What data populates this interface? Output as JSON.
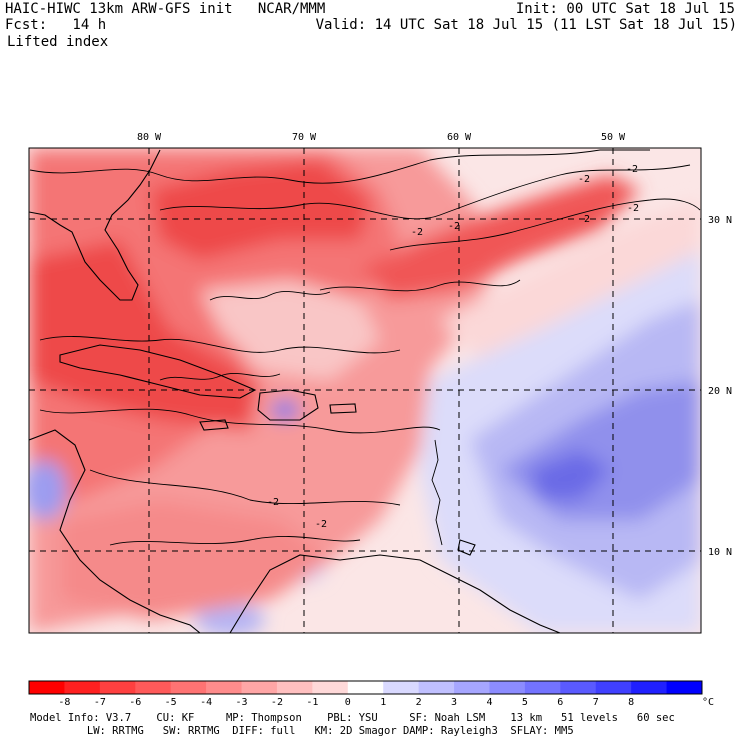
{
  "header": {
    "title_left": "HAIC-HIWC 13km ARW-GFS init   NCAR/MMM",
    "fcst_label": "Fcst:   14 h",
    "field_name": "Lifted index",
    "init_time": "Init: 00 UTC Sat 18 Jul 15",
    "valid_time": "Valid: 14 UTC Sat 18 Jul 15 (11 LST Sat 18 Jul 15)"
  },
  "map": {
    "longitude_labels": [
      "80 W",
      "70 W",
      "60 W",
      "50 W"
    ],
    "latitude_labels": [
      "30 N",
      "20 N",
      "10 N"
    ],
    "contour_labels": [
      "-2",
      "-2",
      "-2",
      "-2",
      "-2",
      "-2",
      "-2",
      "-2"
    ],
    "colors": {
      "strong_negative": "#ef3b3b",
      "moderate_negative": "#f47474",
      "weak_negative": "#f9b0b0",
      "near_zero": "#fbe6e6",
      "weak_positive": "#dcdcfa",
      "moderate_positive": "#a8a8f0",
      "strong_positive": "#5c5ce8"
    }
  },
  "colorbar": {
    "ticks": [
      "-8",
      "-7",
      "-6",
      "-5",
      "-4",
      "-3",
      "-2",
      "-1",
      "0",
      "1",
      "2",
      "3",
      "4",
      "5",
      "6",
      "7",
      "8"
    ],
    "unit": "°C",
    "colors": [
      "#ff0000",
      "#ff2020",
      "#ff4040",
      "#ff5a5a",
      "#ff7373",
      "#ff8c8c",
      "#ffa6a6",
      "#ffc0c0",
      "#ffd9d9",
      "#ffffff",
      "#d9d9ff",
      "#c0c0ff",
      "#a6a6ff",
      "#8c8cff",
      "#7373ff",
      "#5a5aff",
      "#4040ff",
      "#2020ff",
      "#0000ff"
    ]
  },
  "footer": {
    "line1": "Model Info: V3.7    CU: KF     MP: Thompson    PBL: YSU     SF: Noah LSM    13 km   51 levels   60 sec",
    "line2": "         LW: RRTMG   SW: RRTMG  DIFF: full   KM: 2D Smagor DAMP: Rayleigh3  SFLAY: MM5"
  }
}
